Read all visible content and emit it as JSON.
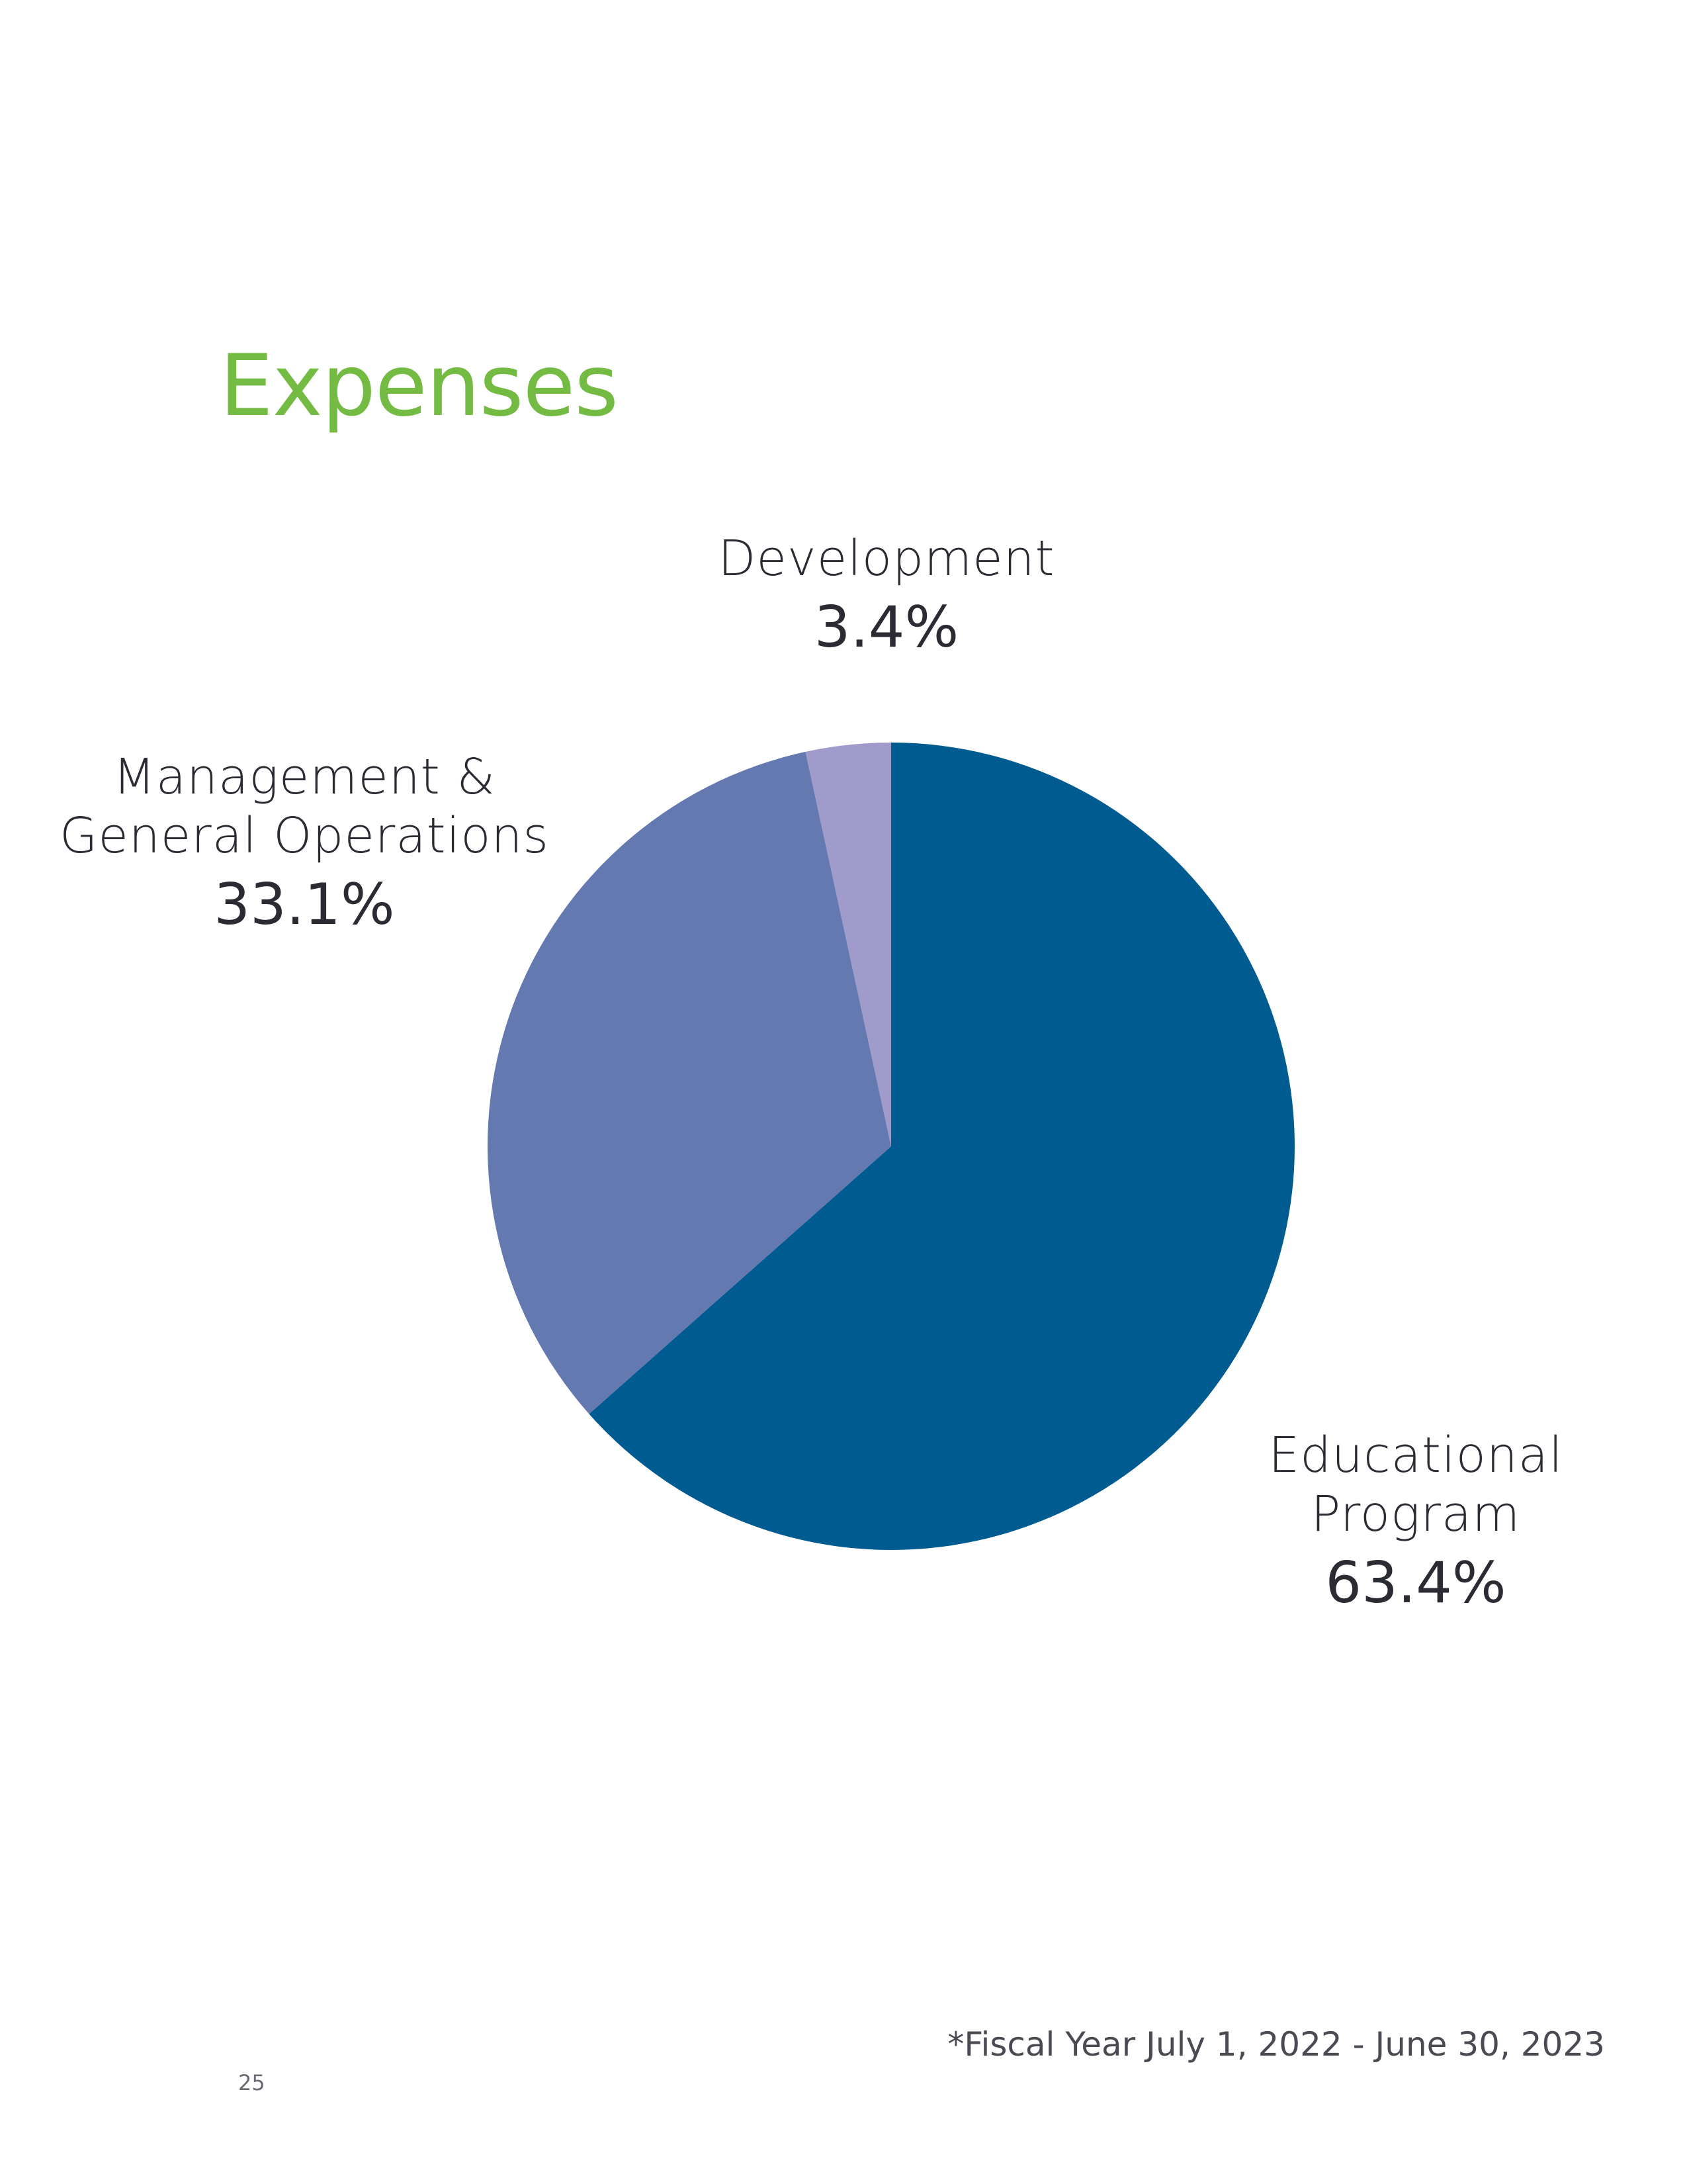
{
  "page": {
    "title": "Expenses",
    "footnote": "*Fiscal Year July 1, 2022 - June 30, 2023",
    "page_number": "25"
  },
  "colors": {
    "title": "#74bb43"
  },
  "chart_data": {
    "type": "pie",
    "title": "Expenses",
    "start_angle_deg": 0,
    "direction": "clockwise",
    "slices": [
      {
        "name": "Educational\nProgram",
        "value": 63.4,
        "label": "63.4%",
        "color": "#005b91"
      },
      {
        "name": "Management &\nGeneral Operations",
        "value": 33.1,
        "label": "33.1%",
        "color": "#6479b0"
      },
      {
        "name": "Development",
        "value": 3.4,
        "label": "3.4%",
        "color": "#a09bcb"
      }
    ]
  }
}
